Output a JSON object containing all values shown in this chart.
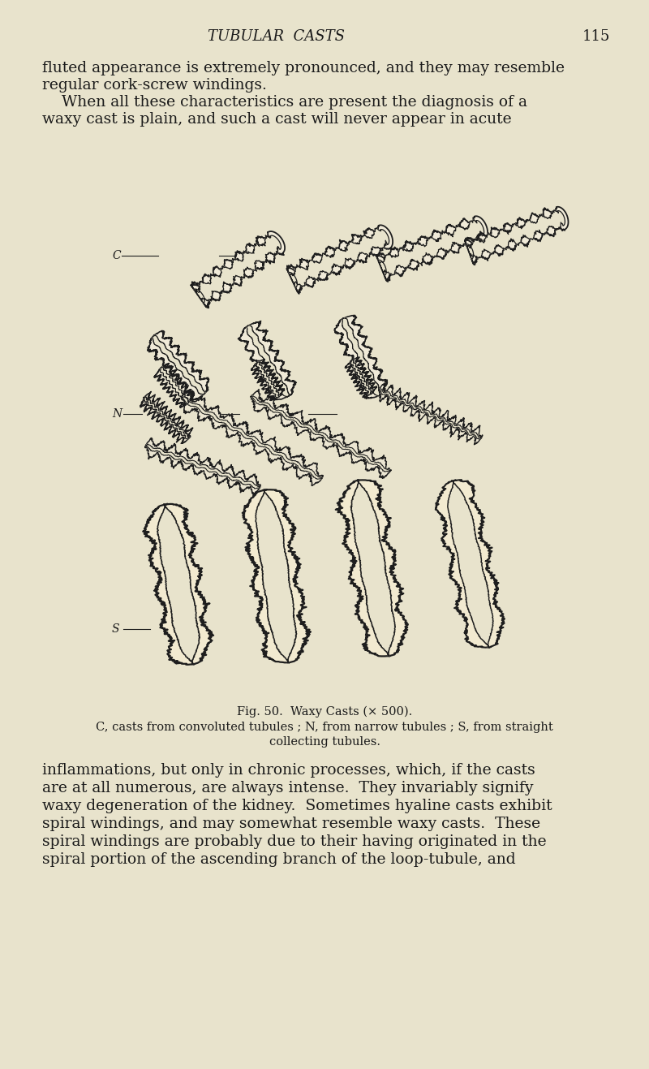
{
  "background_color": "#e8e3cc",
  "page_number": "115",
  "header_text": "TUBULAR  CASTS",
  "top_text_lines": [
    "fluted appearance is extremely pronounced, and they may resemble",
    "regular cork‐screw windings.",
    "    When all these characteristics are present the diagnosis of a",
    "waxy cast is plain, and such a cast will never appear in acute"
  ],
  "fig_caption_line1": "Fig. 50.  Waxy Casts (× 500).",
  "fig_caption_line2": "C, casts from convoluted tubules ; N, from narrow tubules ; S, from straight",
  "fig_caption_line3": "collecting tubules.",
  "bottom_text_lines": [
    "inflammations, but only in chronic processes, which, if the casts",
    "are at all numerous, are always intense.  They invariably signify",
    "waxy degeneration of the kidney.  Sometimes hyaline casts exhibit",
    "spiral windings, and may somewhat resemble waxy casts.  These",
    "spiral windings are probably due to their having originated in the",
    "spiral portion of the ascending branch of the loop‐tubule, and"
  ],
  "label_C": "C",
  "label_N": "N",
  "label_S": "S",
  "text_color": "#1a1a1a",
  "ink_color": "#1e1e1e",
  "body_fontsize": 13.5,
  "header_fontsize": 13,
  "caption_fontsize": 10.5
}
